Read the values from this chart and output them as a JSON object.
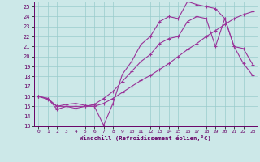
{
  "xlabel": "Windchill (Refroidissement éolien,°C)",
  "background_color": "#cce8e8",
  "grid_color": "#99cccc",
  "line_color": "#993399",
  "xlim": [
    -0.5,
    23.5
  ],
  "ylim": [
    13,
    25.5
  ],
  "yticks": [
    13,
    14,
    15,
    16,
    17,
    18,
    19,
    20,
    21,
    22,
    23,
    24,
    25
  ],
  "xticks": [
    0,
    1,
    2,
    3,
    4,
    5,
    6,
    7,
    8,
    9,
    10,
    11,
    12,
    13,
    14,
    15,
    16,
    17,
    18,
    19,
    20,
    21,
    22,
    23
  ],
  "line1_x": [
    0,
    1,
    2,
    3,
    4,
    5,
    6,
    7,
    8,
    9,
    10,
    11,
    12,
    13,
    14,
    15,
    16,
    17,
    18,
    19,
    20,
    21,
    22,
    23
  ],
  "line1_y": [
    16.0,
    15.8,
    14.7,
    15.0,
    15.0,
    15.0,
    15.0,
    13.1,
    15.3,
    18.2,
    19.5,
    21.2,
    22.0,
    23.5,
    24.0,
    23.8,
    25.5,
    25.2,
    25.0,
    24.8,
    23.8,
    21.0,
    19.3,
    18.1
  ],
  "line2_x": [
    0,
    1,
    2,
    3,
    4,
    5,
    6,
    7,
    8,
    9,
    10,
    11,
    12,
    13,
    14,
    15,
    16,
    17,
    18,
    19,
    20,
    21,
    22,
    23
  ],
  "line2_y": [
    16.0,
    15.8,
    15.0,
    15.2,
    15.3,
    15.1,
    15.0,
    15.3,
    15.8,
    16.4,
    17.0,
    17.6,
    18.1,
    18.7,
    19.3,
    20.0,
    20.7,
    21.3,
    22.0,
    22.6,
    23.2,
    23.8,
    24.2,
    24.5
  ],
  "line3_x": [
    0,
    1,
    2,
    3,
    4,
    5,
    6,
    7,
    8,
    9,
    10,
    11,
    12,
    13,
    14,
    15,
    16,
    17,
    18,
    19,
    20,
    21,
    22,
    23
  ],
  "line3_y": [
    16.0,
    15.7,
    15.0,
    15.0,
    14.8,
    15.0,
    15.2,
    15.8,
    16.5,
    17.5,
    18.5,
    19.5,
    20.2,
    21.3,
    21.8,
    22.0,
    23.5,
    24.0,
    23.8,
    21.0,
    23.8,
    21.0,
    20.8,
    19.2
  ]
}
